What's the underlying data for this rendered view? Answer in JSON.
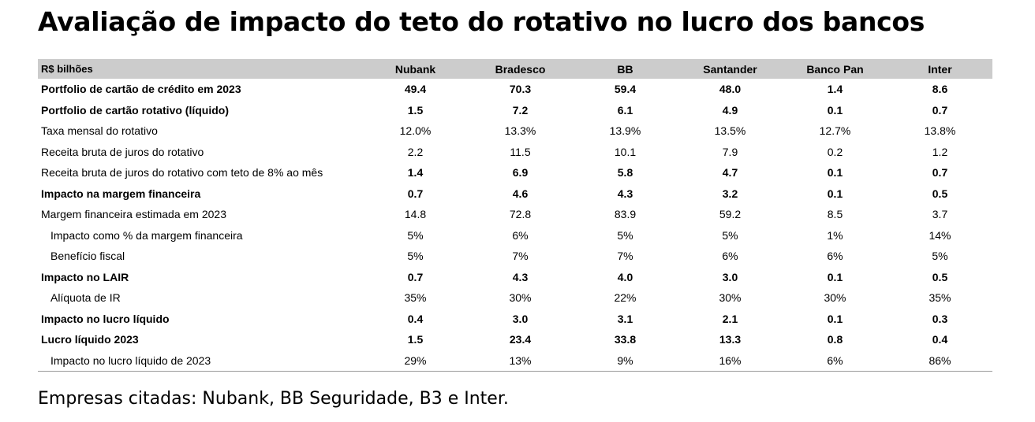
{
  "title": "Avaliação de impacto do teto do rotativo no lucro dos bancos",
  "table": {
    "header": {
      "label": "R$ bilhões",
      "columns": [
        "Nubank",
        "Bradesco",
        "BB",
        "Santander",
        "Banco Pan",
        "Inter"
      ]
    },
    "rows": [
      {
        "label": "Portfolio de cartão de crédito em 2023",
        "values": [
          "49.4",
          "70.3",
          "59.4",
          "48.0",
          "1.4",
          "8.6"
        ],
        "style": "bold"
      },
      {
        "label": "Portfolio de cartão rotativo (líquido)",
        "values": [
          "1.5",
          "7.2",
          "6.1",
          "4.9",
          "0.1",
          "0.7"
        ],
        "style": "bold"
      },
      {
        "label": "Taxa mensal do rotativo",
        "values": [
          "12.0%",
          "13.3%",
          "13.9%",
          "13.5%",
          "12.7%",
          "13.8%"
        ],
        "style": "normal"
      },
      {
        "label": "Receita bruta de juros do rotativo",
        "values": [
          "2.2",
          "11.5",
          "10.1",
          "7.9",
          "0.2",
          "1.2"
        ],
        "style": "normal"
      },
      {
        "label": "Receita bruta de juros do rotativo com teto de 8% ao mês",
        "values": [
          "1.4",
          "6.9",
          "5.8",
          "4.7",
          "0.1",
          "0.7"
        ],
        "style": "mixed"
      },
      {
        "label": "Impacto na margem financeira",
        "values": [
          "0.7",
          "4.6",
          "4.3",
          "3.2",
          "0.1",
          "0.5"
        ],
        "style": "bold"
      },
      {
        "label": "Margem financeira estimada em 2023",
        "values": [
          "14.8",
          "72.8",
          "83.9",
          "59.2",
          "8.5",
          "3.7"
        ],
        "style": "normal"
      },
      {
        "label": "Impacto como % da margem financeira",
        "values": [
          "5%",
          "6%",
          "5%",
          "5%",
          "1%",
          "14%"
        ],
        "style": "indent"
      },
      {
        "label": "Benefício fiscal",
        "values": [
          "5%",
          "7%",
          "7%",
          "6%",
          "6%",
          "5%"
        ],
        "style": "indent"
      },
      {
        "label": "Impacto no LAIR",
        "values": [
          "0.7",
          "4.3",
          "4.0",
          "3.0",
          "0.1",
          "0.5"
        ],
        "style": "bold"
      },
      {
        "label": "Alíquota de IR",
        "values": [
          "35%",
          "30%",
          "22%",
          "30%",
          "30%",
          "35%"
        ],
        "style": "indent"
      },
      {
        "label": "Impacto no lucro líquido",
        "values": [
          "0.4",
          "3.0",
          "3.1",
          "2.1",
          "0.1",
          "0.3"
        ],
        "style": "bold"
      },
      {
        "label": "Lucro líquido 2023",
        "values": [
          "1.5",
          "23.4",
          "33.8",
          "13.3",
          "0.8",
          "0.4"
        ],
        "style": "bold"
      },
      {
        "label": "Impacto no lucro líquido de 2023",
        "values": [
          "29%",
          "13%",
          "9%",
          "16%",
          "6%",
          "86%"
        ],
        "style": "indent"
      }
    ]
  },
  "footnote": "Empresas citadas: Nubank, BB Seguridade, B3 e Inter."
}
